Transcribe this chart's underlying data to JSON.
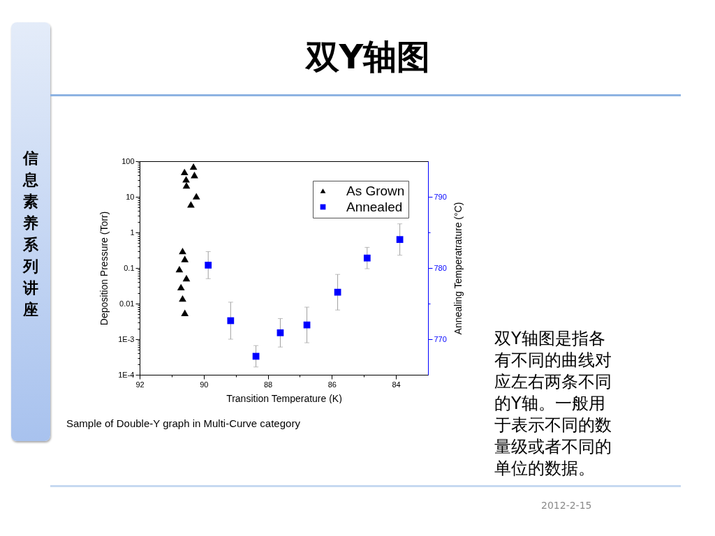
{
  "chart_data": {
    "type": "scatter",
    "title": "双Y轴图",
    "xlabel": "Transition Temperature (K)",
    "ylabel": "Deposition Pressure (Torr)",
    "y2label": "Annealing Temperatrature (°C)",
    "annotations": [
      "信息素养系列讲座",
      "Sample of Double-Y graph in Multi-Curve category",
      "双Y轴图是指各有不同的曲线对应左右两条不同的Y轴。一般用于表示不同的数量级或者不同的单位的数据。",
      "2012-2-15"
    ],
    "xlim": [
      92,
      83
    ],
    "xticks": [
      92,
      {
        "value": 91,
        "label": null
      },
      90,
      {
        "value": 89,
        "label": null
      },
      88,
      {
        "value": 87,
        "label": null
      },
      86,
      {
        "value": 85,
        "label": null
      },
      84
    ],
    "ylim": [
      0.0001,
      100
    ],
    "yticks": [
      {
        "value": 0.0001,
        "label": "1E-4"
      },
      {
        "value": 0.0002,
        "label": null
      },
      {
        "value": 0.0003,
        "label": null
      },
      {
        "value": 0.0004,
        "label": null
      },
      {
        "value": 0.0005,
        "label": null
      },
      {
        "value": 0.0006,
        "label": null
      },
      {
        "value": 0.0007,
        "label": null
      },
      {
        "value": 0.0008,
        "label": null
      },
      {
        "value": 0.0009,
        "label": null
      },
      {
        "value": 0.001,
        "label": "1E-3"
      },
      {
        "value": 0.002,
        "label": null
      },
      {
        "value": 0.003,
        "label": null
      },
      {
        "value": 0.004,
        "label": null
      },
      {
        "value": 0.005,
        "label": null
      },
      {
        "value": 0.006,
        "label": null
      },
      {
        "value": 0.007,
        "label": null
      },
      {
        "value": 0.008,
        "label": null
      },
      {
        "value": 0.009,
        "label": null
      },
      0.01,
      {
        "value": 0.02,
        "label": null
      },
      {
        "value": 0.03,
        "label": null
      },
      {
        "value": 0.04,
        "label": null
      },
      {
        "value": 0.05,
        "label": null
      },
      {
        "value": 0.06,
        "label": null
      },
      {
        "value": 0.07,
        "label": null
      },
      {
        "value": 0.08,
        "label": null
      },
      {
        "value": 0.09,
        "label": null
      },
      0.1,
      {
        "value": 0.2,
        "label": null
      },
      {
        "value": 0.3,
        "label": null
      },
      {
        "value": 0.4,
        "label": null
      },
      {
        "value": 0.5,
        "label": null
      },
      {
        "value": 0.6,
        "label": null
      },
      {
        "value": 0.7,
        "label": null
      },
      {
        "value": 0.8,
        "label": null
      },
      {
        "value": 0.9,
        "label": null
      },
      1,
      {
        "value": 2,
        "label": null
      },
      {
        "value": 3,
        "label": null
      },
      {
        "value": 4,
        "label": null
      },
      {
        "value": 5,
        "label": null
      },
      {
        "value": 6,
        "label": null
      },
      {
        "value": 7,
        "label": null
      },
      {
        "value": 8,
        "label": null
      },
      {
        "value": 9,
        "label": null
      },
      10,
      {
        "value": 20,
        "label": null
      },
      {
        "value": 30,
        "label": null
      },
      {
        "value": 40,
        "label": null
      },
      {
        "value": 50,
        "label": null
      },
      {
        "value": 60,
        "label": null
      },
      {
        "value": 70,
        "label": null
      },
      {
        "value": 80,
        "label": null
      },
      {
        "value": 90,
        "label": null
      },
      100
    ],
    "log": "y",
    "y2lim": [
      765,
      795
    ],
    "y2ticks": [
      770,
      {
        "value": 775,
        "label": null
      },
      780,
      {
        "value": 785,
        "label": null
      },
      790
    ],
    "legend": "top right",
    "series": [
      {
        "name": "As Grown",
        "marker": "triangle",
        "color": "#000000",
        "x": [
          90.32,
          90.6,
          90.29,
          90.55,
          90.54,
          90.23,
          90.4,
          90.66,
          90.59,
          90.76,
          90.54,
          90.71,
          90.66,
          90.59
        ],
        "values": [
          71,
          50,
          41,
          31,
          21,
          10.4,
          6.1,
          0.3,
          0.18,
          0.093,
          0.052,
          0.029,
          0.014,
          0.0055
        ]
      },
      {
        "name": "Annealed",
        "marker": "square",
        "color": "#0000ff",
        "axis": "y2",
        "x": [
          89.86,
          89.16,
          88.37,
          87.61,
          86.78,
          85.82,
          84.9,
          83.88
        ],
        "values": [
          780.4,
          772.6,
          767.6,
          770.9,
          772.0,
          776.6,
          781.4,
          784.0
        ],
        "errors": [
          1.9,
          2.6,
          1.5,
          2.0,
          2.5,
          2.5,
          1.5,
          2.2
        ]
      }
    ]
  }
}
